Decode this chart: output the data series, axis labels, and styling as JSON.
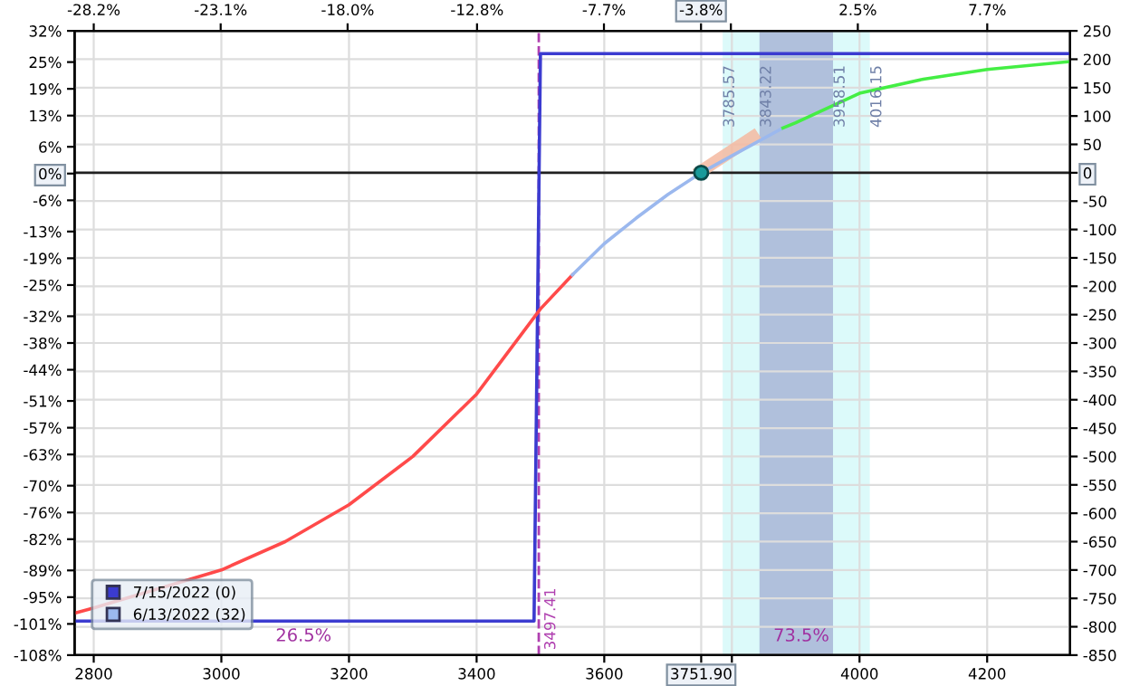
{
  "chart_data": {
    "type": "line",
    "series": [
      {
        "name": "7/15/2022 (0)",
        "color": "#3b3bd0",
        "axis": "y2",
        "x": [
          2770,
          3490,
          3500,
          4330
        ],
        "values": [
          -790,
          -790,
          210,
          210
        ]
      },
      {
        "color": "#ff4a4a",
        "axis": "y2",
        "x": [
          2770,
          2800,
          3000,
          3100,
          3200,
          3300,
          3400,
          3500,
          3550
        ],
        "values": [
          -776,
          -767,
          -700,
          -650,
          -585,
          -500,
          -390,
          -240,
          -180
        ]
      },
      {
        "name": "6/13/2022 (32)",
        "color": "#9bb8ee",
        "axis": "y2",
        "x": [
          3550,
          3600,
          3650,
          3700,
          3751.9,
          3800,
          3880
        ],
        "values": [
          -180,
          -125,
          -80,
          -38,
          0,
          30,
          79
        ]
      },
      {
        "color": "#44ee44",
        "axis": "y2",
        "x": [
          3880,
          3900,
          4000,
          4100,
          4200,
          4330
        ],
        "values": [
          79,
          88,
          140,
          165,
          182,
          196
        ]
      },
      {
        "color": "#f4b8a0",
        "axis": "y2",
        "x": [
          3751.9,
          3833
        ],
        "values": [
          3,
          63
        ]
      },
      {
        "type": "scatter",
        "color": "#1a9a9a",
        "axis": "y2",
        "x": [
          3751.9
        ],
        "values": [
          0
        ]
      }
    ],
    "xlim": [
      2770,
      4330
    ],
    "xticks": [
      2800,
      3000,
      3200,
      3400,
      3600,
      {
        "value": 3751.9,
        "label": "3751.90"
      },
      {
        "value": 3800,
        "label": null
      },
      4000,
      4200
    ],
    "x2lim": [
      -28.97,
      11.03
    ],
    "x2ticks": [
      {
        "value": -28.2,
        "label": "-28.2%"
      },
      {
        "value": -23.1,
        "label": "-23.1%"
      },
      {
        "value": -18.0,
        "label": "-18.0%"
      },
      {
        "value": -12.8,
        "label": "-12.8%"
      },
      {
        "value": -7.7,
        "label": "-7.7%"
      },
      {
        "value": -3.8,
        "label": "-3.8%"
      },
      {
        "value": -2.6,
        "label": null
      },
      {
        "value": 2.5,
        "label": "2.5%"
      },
      {
        "value": 7.7,
        "label": "7.7%"
      }
    ],
    "ylim": [
      -108,
      32
    ],
    "yticks": [
      {
        "value": 32,
        "label": "32%"
      },
      {
        "value": 25,
        "label": "25%"
      },
      {
        "value": 19,
        "label": "19%"
      },
      {
        "value": 13,
        "label": "13%"
      },
      {
        "value": 6,
        "label": "6%"
      },
      {
        "value": 0,
        "label": "0%"
      },
      {
        "value": -6,
        "label": "-6%"
      },
      {
        "value": -13,
        "label": "-13%"
      },
      {
        "value": -19,
        "label": "-19%"
      },
      {
        "value": -25,
        "label": "-25%"
      },
      {
        "value": -32,
        "label": "-32%"
      },
      {
        "value": -38,
        "label": "-38%"
      },
      {
        "value": -44,
        "label": "-44%"
      },
      {
        "value": -51,
        "label": "-51%"
      },
      {
        "value": -57,
        "label": "-57%"
      },
      {
        "value": -63,
        "label": "-63%"
      },
      {
        "value": -70,
        "label": "-70%"
      },
      {
        "value": -76,
        "label": "-76%"
      },
      {
        "value": -82,
        "label": "-82%"
      },
      {
        "value": -89,
        "label": "-89%"
      },
      {
        "value": -95,
        "label": "-95%"
      },
      {
        "value": -101,
        "label": "-101%"
      },
      {
        "value": -108,
        "label": "-108%"
      }
    ],
    "y2lim": [
      -850,
      250
    ],
    "y2ticks": [
      250,
      200,
      150,
      100,
      50,
      0,
      -50,
      -100,
      -150,
      -200,
      -250,
      -300,
      -350,
      -400,
      -450,
      -500,
      -550,
      -600,
      -650,
      -700,
      -750,
      -800,
      -850
    ],
    "bands": [
      {
        "axis": "x",
        "from": 3785.57,
        "to": 4016.15,
        "color": "#dcfafa"
      },
      {
        "axis": "x",
        "from": 3843.22,
        "to": 3958.51,
        "color": "#b0c0dc"
      }
    ],
    "ref_lines": [
      {
        "axis": "x",
        "value": 3497.41,
        "label": "3497.41",
        "color": "#b040b0",
        "line_style": "dashed"
      },
      {
        "axis": "y2",
        "value": 0,
        "color": "#202020",
        "line_style": "solid"
      }
    ],
    "annotations": [
      "3785.57",
      "3843.22",
      "3958.51",
      "4016.15",
      "26.5%",
      "73.5%"
    ],
    "grid": true,
    "legend": "bottom left",
    "line_style": "solid"
  }
}
